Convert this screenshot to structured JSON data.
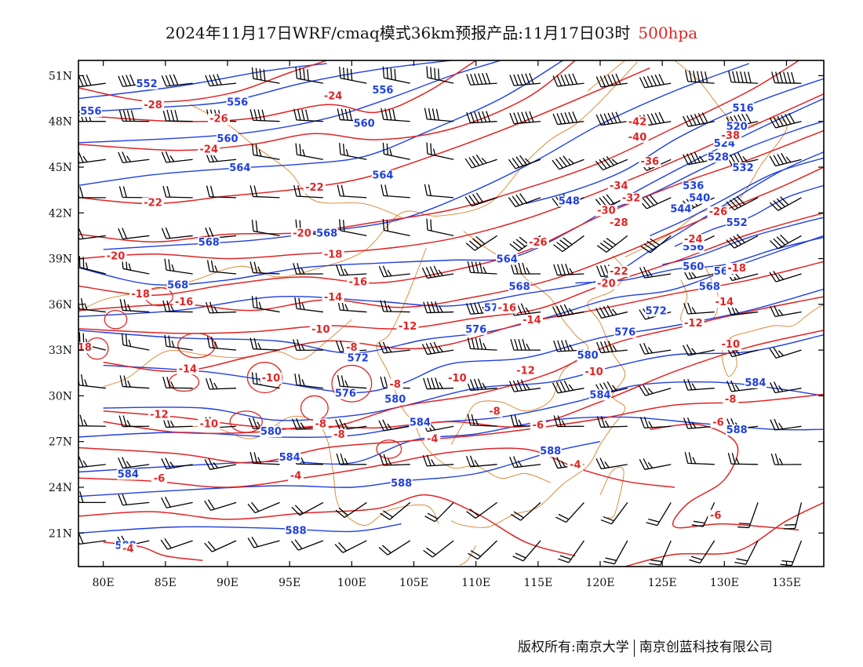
{
  "title": {
    "text": "2024年11月17日WRF/cmaq模式36km预报产品:11月17日03时",
    "level": "500hpa",
    "level_color": "#e02424"
  },
  "map": {
    "lon_range": [
      78,
      138
    ],
    "lat_range": [
      18.8,
      52
    ],
    "lon_ticks": [
      "80E",
      "85E",
      "90E",
      "95E",
      "100E",
      "105E",
      "110E",
      "115E",
      "120E",
      "125E",
      "130E",
      "135E"
    ],
    "lon_values": [
      80,
      85,
      90,
      95,
      100,
      105,
      110,
      115,
      120,
      125,
      130,
      135
    ],
    "lat_ticks": [
      "51N",
      "48N",
      "45N",
      "42N",
      "39N",
      "36N",
      "33N",
      "30N",
      "27N",
      "24N",
      "21N"
    ],
    "lat_values": [
      51,
      48,
      45,
      42,
      39,
      36,
      33,
      30,
      27,
      24,
      21
    ],
    "colors": {
      "temperature": "#e02424",
      "height": "#1f3fe0",
      "boundary": "#d9822b",
      "barb": "#000000"
    }
  },
  "temperature_labels": [
    {
      "text": "-28",
      "lon": 84.0,
      "lat": 48.9
    },
    {
      "text": "-26",
      "lon": 89.3,
      "lat": 48.0
    },
    {
      "text": "-24",
      "lon": 88.5,
      "lat": 46.0
    },
    {
      "text": "-24",
      "lon": 98.5,
      "lat": 49.5
    },
    {
      "text": "-22",
      "lon": 84.0,
      "lat": 42.5
    },
    {
      "text": "-22",
      "lon": 97.0,
      "lat": 43.5
    },
    {
      "text": "-20",
      "lon": 96.0,
      "lat": 40.5
    },
    {
      "text": "-20",
      "lon": 81.0,
      "lat": 39.0
    },
    {
      "text": "-18",
      "lon": 98.5,
      "lat": 39.1
    },
    {
      "text": "-18",
      "lon": 83.0,
      "lat": 36.5
    },
    {
      "text": "-16",
      "lon": 100.5,
      "lat": 37.3
    },
    {
      "text": "-16",
      "lon": 86.5,
      "lat": 36.0
    },
    {
      "text": "-16",
      "lon": 112.5,
      "lat": 35.6
    },
    {
      "text": "-14",
      "lon": 98.5,
      "lat": 36.3
    },
    {
      "text": "-14",
      "lon": 114.5,
      "lat": 34.8
    },
    {
      "text": "-14",
      "lon": 86.8,
      "lat": 31.6
    },
    {
      "text": "-14",
      "lon": 130.0,
      "lat": 36.0
    },
    {
      "text": "-12",
      "lon": 104.5,
      "lat": 34.4
    },
    {
      "text": "-12",
      "lon": 114.0,
      "lat": 31.5
    },
    {
      "text": "-12",
      "lon": 84.5,
      "lat": 28.6
    },
    {
      "text": "-12",
      "lon": 127.5,
      "lat": 34.6
    },
    {
      "text": "-10",
      "lon": 97.5,
      "lat": 34.2
    },
    {
      "text": "-10",
      "lon": 93.5,
      "lat": 31.0
    },
    {
      "text": "-10",
      "lon": 108.5,
      "lat": 31.0
    },
    {
      "text": "-10",
      "lon": 119.5,
      "lat": 31.4
    },
    {
      "text": "-10",
      "lon": 88.5,
      "lat": 28.0
    },
    {
      "text": "-10",
      "lon": 130.5,
      "lat": 33.2
    },
    {
      "text": "-8",
      "lon": 100.0,
      "lat": 33.0
    },
    {
      "text": "-8",
      "lon": 103.5,
      "lat": 30.6
    },
    {
      "text": "-8",
      "lon": 97.5,
      "lat": 28.0
    },
    {
      "text": "-8",
      "lon": 99.0,
      "lat": 27.3
    },
    {
      "text": "-8",
      "lon": 111.5,
      "lat": 28.8
    },
    {
      "text": "-8",
      "lon": 130.5,
      "lat": 29.6
    },
    {
      "text": "-6",
      "lon": 115.0,
      "lat": 27.9
    },
    {
      "text": "-6",
      "lon": 129.5,
      "lat": 28.1
    },
    {
      "text": "-6",
      "lon": 84.5,
      "lat": 24.4
    },
    {
      "text": "-6",
      "lon": 129.3,
      "lat": 22.0
    },
    {
      "text": "-4",
      "lon": 106.5,
      "lat": 27.0
    },
    {
      "text": "-4",
      "lon": 95.5,
      "lat": 24.6
    },
    {
      "text": "-4",
      "lon": 118.0,
      "lat": 25.3
    },
    {
      "text": "-4",
      "lon": 82.0,
      "lat": 19.8
    },
    {
      "text": "-26",
      "lon": 115.0,
      "lat": 39.9
    },
    {
      "text": "-24",
      "lon": 127.5,
      "lat": 40.1
    },
    {
      "text": "-22",
      "lon": 121.5,
      "lat": 38.0
    },
    {
      "text": "-20",
      "lon": 120.5,
      "lat": 37.2
    },
    {
      "text": "-18",
      "lon": 131.0,
      "lat": 38.2
    },
    {
      "text": "-26",
      "lon": 129.5,
      "lat": 41.9
    },
    {
      "text": "-28",
      "lon": 121.5,
      "lat": 41.2
    },
    {
      "text": "-30",
      "lon": 120.5,
      "lat": 42.0
    },
    {
      "text": "-32",
      "lon": 122.5,
      "lat": 42.8
    },
    {
      "text": "-34",
      "lon": 121.5,
      "lat": 43.6
    },
    {
      "text": "-36",
      "lon": 124.0,
      "lat": 45.2
    },
    {
      "text": "-38",
      "lon": 130.5,
      "lat": 46.9
    },
    {
      "text": "-40",
      "lon": 123.0,
      "lat": 46.8
    },
    {
      "text": "-42",
      "lon": 123.0,
      "lat": 47.8
    },
    {
      "text": "18",
      "lon": 78.5,
      "lat": 33.0
    }
  ],
  "height_labels": [
    {
      "text": "552",
      "lon": 83.5,
      "lat": 50.3
    },
    {
      "text": "556",
      "lon": 79.0,
      "lat": 48.5
    },
    {
      "text": "556",
      "lon": 90.8,
      "lat": 49.1
    },
    {
      "text": "556",
      "lon": 102.5,
      "lat": 49.9
    },
    {
      "text": "560",
      "lon": 90.0,
      "lat": 46.7
    },
    {
      "text": "560",
      "lon": 101.0,
      "lat": 47.7
    },
    {
      "text": "564",
      "lon": 91.0,
      "lat": 44.8
    },
    {
      "text": "564",
      "lon": 102.5,
      "lat": 44.3
    },
    {
      "text": "568",
      "lon": 88.5,
      "lat": 39.9
    },
    {
      "text": "568",
      "lon": 98.0,
      "lat": 40.5
    },
    {
      "text": "568",
      "lon": 86.0,
      "lat": 37.1
    },
    {
      "text": "564",
      "lon": 112.5,
      "lat": 38.8
    },
    {
      "text": "568",
      "lon": 113.5,
      "lat": 37.0
    },
    {
      "text": "572",
      "lon": 111.5,
      "lat": 35.6
    },
    {
      "text": "576",
      "lon": 110.0,
      "lat": 34.2
    },
    {
      "text": "576",
      "lon": 122.0,
      "lat": 34.0
    },
    {
      "text": "572",
      "lon": 100.5,
      "lat": 32.3
    },
    {
      "text": "572",
      "lon": 124.5,
      "lat": 35.4
    },
    {
      "text": "576",
      "lon": 99.5,
      "lat": 30.0
    },
    {
      "text": "580",
      "lon": 103.5,
      "lat": 29.6
    },
    {
      "text": "580",
      "lon": 119.0,
      "lat": 32.5
    },
    {
      "text": "584",
      "lon": 105.5,
      "lat": 28.1
    },
    {
      "text": "584",
      "lon": 120.0,
      "lat": 29.9
    },
    {
      "text": "584",
      "lon": 132.5,
      "lat": 30.7
    },
    {
      "text": "580",
      "lon": 93.5,
      "lat": 27.5
    },
    {
      "text": "584",
      "lon": 95.0,
      "lat": 25.8
    },
    {
      "text": "584",
      "lon": 82.0,
      "lat": 24.7
    },
    {
      "text": "588",
      "lon": 104.0,
      "lat": 24.1
    },
    {
      "text": "588",
      "lon": 116.0,
      "lat": 26.2
    },
    {
      "text": "588",
      "lon": 131.0,
      "lat": 27.6
    },
    {
      "text": "588",
      "lon": 95.5,
      "lat": 21.0
    },
    {
      "text": "588",
      "lon": 81.8,
      "lat": 20.0
    },
    {
      "text": "516",
      "lon": 131.5,
      "lat": 48.7
    },
    {
      "text": "520",
      "lon": 131.0,
      "lat": 47.5
    },
    {
      "text": "524",
      "lon": 130.0,
      "lat": 46.4
    },
    {
      "text": "528",
      "lon": 129.5,
      "lat": 45.5
    },
    {
      "text": "532",
      "lon": 131.5,
      "lat": 44.8
    },
    {
      "text": "536",
      "lon": 127.5,
      "lat": 43.6
    },
    {
      "text": "540",
      "lon": 128.0,
      "lat": 42.8
    },
    {
      "text": "544",
      "lon": 126.5,
      "lat": 42.1
    },
    {
      "text": "548",
      "lon": 117.5,
      "lat": 42.6
    },
    {
      "text": "552",
      "lon": 131.0,
      "lat": 41.2
    },
    {
      "text": "556",
      "lon": 127.5,
      "lat": 39.6
    },
    {
      "text": "560",
      "lon": 127.5,
      "lat": 38.3
    },
    {
      "text": "564",
      "lon": 130.0,
      "lat": 38.0
    },
    {
      "text": "568",
      "lon": 128.8,
      "lat": 37.0
    }
  ],
  "attribution": {
    "left": "版权所有:南京大学",
    "right": "南京创蓝科技有限公司"
  }
}
